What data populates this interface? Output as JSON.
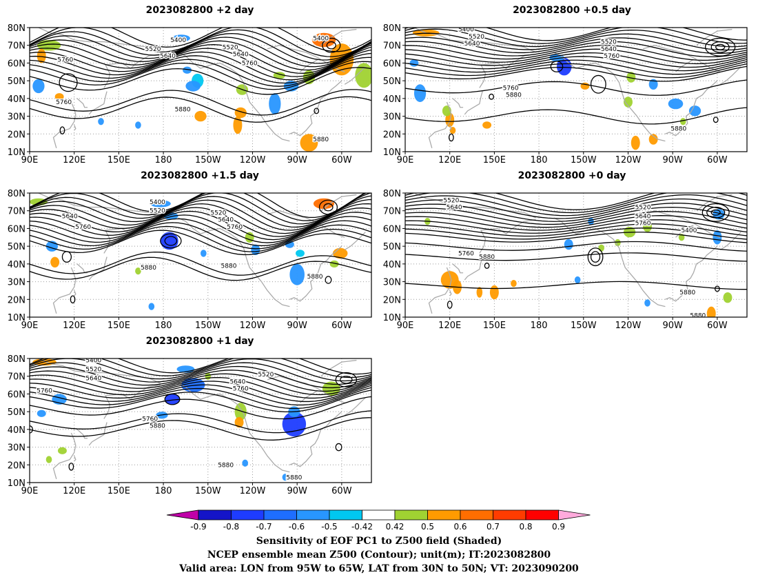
{
  "panels": [
    {
      "title": "2023082800  +2 day",
      "labels": [
        {
          "t": "5400",
          "lon": 190,
          "lat": 73
        },
        {
          "t": "5400",
          "lon": 286,
          "lat": 74
        },
        {
          "t": "5520",
          "lon": 173,
          "lat": 68
        },
        {
          "t": "5640",
          "lon": 183,
          "lat": 64
        },
        {
          "t": "5760",
          "lon": 114,
          "lat": 62
        },
        {
          "t": "5520",
          "lon": 225,
          "lat": 69
        },
        {
          "t": "5640",
          "lon": 232,
          "lat": 65
        },
        {
          "t": "5760",
          "lon": 238,
          "lat": 60
        },
        {
          "t": "5760",
          "lon": 113,
          "lat": 38
        },
        {
          "t": "5880",
          "lon": 193,
          "lat": 34
        },
        {
          "t": "5880",
          "lon": 286,
          "lat": 17
        }
      ]
    },
    {
      "title": "2023082800  +0.5 day",
      "labels": [
        {
          "t": "5400",
          "lon": 131,
          "lat": 79
        },
        {
          "t": "5520",
          "lon": 138,
          "lat": 75
        },
        {
          "t": "5640",
          "lon": 135,
          "lat": 71
        },
        {
          "t": "5520",
          "lon": 227,
          "lat": 72
        },
        {
          "t": "5640",
          "lon": 227,
          "lat": 68
        },
        {
          "t": "5760",
          "lon": 229,
          "lat": 64
        },
        {
          "t": "5760",
          "lon": 161,
          "lat": 46
        },
        {
          "t": "5880",
          "lon": 163,
          "lat": 42
        },
        {
          "t": "5880",
          "lon": 274,
          "lat": 23
        }
      ]
    },
    {
      "title": "2023082800  +1.5 day",
      "labels": [
        {
          "t": "5400",
          "lon": 176,
          "lat": 75
        },
        {
          "t": "5520",
          "lon": 176,
          "lat": 70
        },
        {
          "t": "5640",
          "lon": 117,
          "lat": 67
        },
        {
          "t": "5760",
          "lon": 126,
          "lat": 61
        },
        {
          "t": "5520",
          "lon": 217,
          "lat": 69
        },
        {
          "t": "5640",
          "lon": 222,
          "lat": 65
        },
        {
          "t": "5760",
          "lon": 228,
          "lat": 61
        },
        {
          "t": "5880",
          "lon": 170,
          "lat": 38
        },
        {
          "t": "5880",
          "lon": 224,
          "lat": 39
        },
        {
          "t": "5880",
          "lon": 282,
          "lat": 33
        }
      ]
    },
    {
      "title": "2023082800  +0 day",
      "labels": [
        {
          "t": "5520",
          "lon": 121,
          "lat": 76
        },
        {
          "t": "5640",
          "lon": 123,
          "lat": 72
        },
        {
          "t": "5520",
          "lon": 250,
          "lat": 72
        },
        {
          "t": "5640",
          "lon": 250,
          "lat": 67
        },
        {
          "t": "5760",
          "lon": 250,
          "lat": 63
        },
        {
          "t": "5400",
          "lon": 281,
          "lat": 59
        },
        {
          "t": "5760",
          "lon": 131,
          "lat": 46
        },
        {
          "t": "5880",
          "lon": 145,
          "lat": 44
        },
        {
          "t": "5880",
          "lon": 280,
          "lat": 24
        },
        {
          "t": "5880",
          "lon": 287,
          "lat": 11
        }
      ]
    },
    {
      "title": "2023082800  +1 day",
      "labels": [
        {
          "t": "5400",
          "lon": 133,
          "lat": 79
        },
        {
          "t": "5520",
          "lon": 133,
          "lat": 74
        },
        {
          "t": "5640",
          "lon": 133,
          "lat": 69
        },
        {
          "t": "5760",
          "lon": 100,
          "lat": 62
        },
        {
          "t": "5640",
          "lon": 230,
          "lat": 67
        },
        {
          "t": "5520",
          "lon": 249,
          "lat": 71
        },
        {
          "t": "5760",
          "lon": 232,
          "lat": 63
        },
        {
          "t": "5760",
          "lon": 171,
          "lat": 46
        },
        {
          "t": "5880",
          "lon": 176,
          "lat": 42
        },
        {
          "t": "5880",
          "lon": 222,
          "lat": 20
        },
        {
          "t": "5880",
          "lon": 268,
          "lat": 13
        }
      ]
    }
  ],
  "axes": {
    "y_ticks": [
      "80N",
      "70N",
      "60N",
      "50N",
      "40N",
      "30N",
      "20N",
      "10N"
    ],
    "x_ticks": [
      "90E",
      "120E",
      "150E",
      "180",
      "150W",
      "120W",
      "90W",
      "60W"
    ],
    "lon_range": [
      90,
      320
    ],
    "lat_range": [
      10,
      80
    ]
  },
  "colorbar": {
    "labels": [
      "-0.9",
      "-0.8",
      "-0.7",
      "-0.6",
      "-0.5",
      "-0.42",
      "0.42",
      "0.5",
      "0.6",
      "0.7",
      "0.8",
      "0.9"
    ],
    "colors": [
      "#c000a8",
      "#1414c8",
      "#1e3cff",
      "#1e6eff",
      "#2896ff",
      "#00c8f0",
      "#ffffff",
      "#a0d232",
      "#ff9b00",
      "#ff6e00",
      "#ff3c00",
      "#ff0000",
      "#ffaadc"
    ]
  },
  "caption": {
    "line1": "Sensitivity of EOF PC1 to Z500 field (Shaded)",
    "line2": "NCEP ensemble mean Z500 (Contour); unit(m); IT:2023082800",
    "line3": "Valid area: LON from 95W to 65W, LAT from 30N to 50N; VT: 2023090200"
  }
}
